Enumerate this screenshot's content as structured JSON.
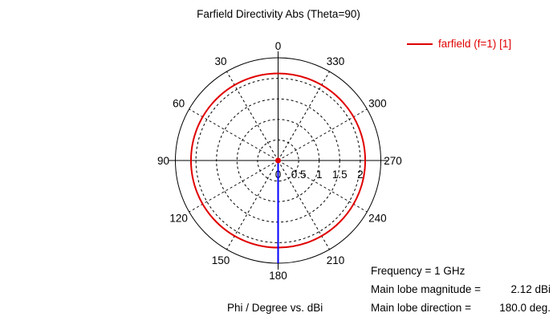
{
  "chart_data": {
    "type": "polar-line",
    "title": "Farfield Directivity Abs (Theta=90)",
    "xlabel": "Phi / Degree vs. dBi",
    "angle_ticks": [
      "0",
      "30",
      "60",
      "90",
      "120",
      "150",
      "180",
      "210",
      "240",
      "270",
      "300",
      "330"
    ],
    "radial_ticks": [
      "0",
      "0.5",
      "1",
      "1.5",
      "2"
    ],
    "radial_range": [
      0,
      2.5
    ],
    "grid": true,
    "legend_position": "top-right",
    "series": [
      {
        "name": "farfield (f=1) [1]",
        "color": "#e00000",
        "r_constant": 2.12,
        "phi_range": [
          0,
          360
        ]
      }
    ],
    "main_lobe_marker": {
      "direction_deg": 180.0,
      "magnitude": 2.12,
      "color": "#0000ff"
    }
  },
  "info": {
    "frequency_label": "Frequency = 1 GHz",
    "magnitude_label": "Main lobe magnitude =",
    "magnitude_value": "2.12 dBi",
    "direction_label": "Main lobe direction =",
    "direction_value": "180.0 deg."
  },
  "colors": {
    "series": "#e00000",
    "marker": "#0000ff",
    "grid": "#000000"
  }
}
